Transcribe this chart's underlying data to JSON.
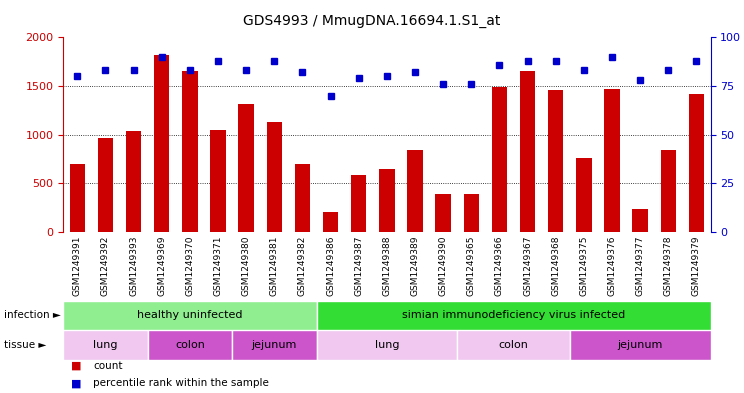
{
  "title": "GDS4993 / MmugDNA.16694.1.S1_at",
  "samples": [
    "GSM1249391",
    "GSM1249392",
    "GSM1249393",
    "GSM1249369",
    "GSM1249370",
    "GSM1249371",
    "GSM1249380",
    "GSM1249381",
    "GSM1249382",
    "GSM1249386",
    "GSM1249387",
    "GSM1249388",
    "GSM1249389",
    "GSM1249390",
    "GSM1249365",
    "GSM1249366",
    "GSM1249367",
    "GSM1249368",
    "GSM1249375",
    "GSM1249376",
    "GSM1249377",
    "GSM1249378",
    "GSM1249379"
  ],
  "counts": [
    700,
    960,
    1040,
    1820,
    1650,
    1050,
    1310,
    1130,
    700,
    200,
    580,
    650,
    840,
    390,
    390,
    1490,
    1650,
    1460,
    760,
    1470,
    230,
    840,
    1420
  ],
  "percentiles": [
    80,
    83,
    83,
    90,
    83,
    88,
    83,
    88,
    82,
    70,
    79,
    80,
    82,
    76,
    76,
    86,
    88,
    88,
    83,
    90,
    78,
    83,
    88
  ],
  "ylim_left": [
    0,
    2000
  ],
  "ylim_right": [
    0,
    100
  ],
  "yticks_left": [
    0,
    500,
    1000,
    1500,
    2000
  ],
  "yticks_right": [
    0,
    25,
    50,
    75,
    100
  ],
  "bar_color": "#cc0000",
  "dot_color": "#0000cc",
  "infection_groups": [
    {
      "label": "healthy uninfected",
      "start": 0,
      "end": 9,
      "color": "#90ee90"
    },
    {
      "label": "simian immunodeficiency virus infected",
      "start": 9,
      "end": 23,
      "color": "#33dd33"
    }
  ],
  "tissue_colors_map": [
    "#f0c8f0",
    "#cc55cc",
    "#cc55cc",
    "#f0c8f0",
    "#f0c8f0",
    "#cc55cc"
  ],
  "tissue_groups": [
    {
      "label": "lung",
      "start": 0,
      "end": 3
    },
    {
      "label": "colon",
      "start": 3,
      "end": 6
    },
    {
      "label": "jejunum",
      "start": 6,
      "end": 9
    },
    {
      "label": "lung",
      "start": 9,
      "end": 14
    },
    {
      "label": "colon",
      "start": 14,
      "end": 18
    },
    {
      "label": "jejunum",
      "start": 18,
      "end": 23
    }
  ],
  "legend_count_label": "count",
  "legend_pct_label": "percentile rank within the sample",
  "infection_label": "infection",
  "tissue_label": "tissue",
  "bg_color": "#ffffff",
  "tick_label_area_color": "#cccccc",
  "grid_color": "#000000",
  "title_fontsize": 10,
  "axis_fontsize": 8,
  "sample_fontsize": 6.5,
  "annot_fontsize": 8
}
